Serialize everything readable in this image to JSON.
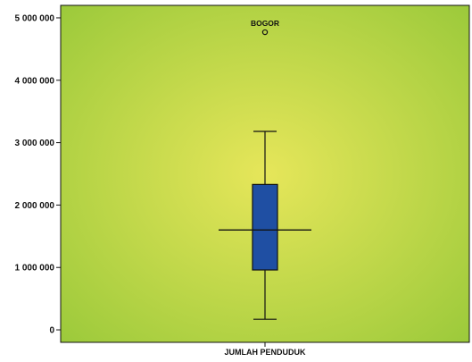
{
  "chart_data": {
    "type": "box",
    "title": "",
    "xlabel": "",
    "ylabel": "",
    "categories": [
      "JUMLAH PENDUDUK"
    ],
    "ylim": [
      -200000,
      5200000
    ],
    "yticks": [
      0,
      1000000,
      2000000,
      3000000,
      4000000,
      5000000
    ],
    "ytick_labels": [
      "0",
      "1 000 000",
      "2 000 000",
      "3 000 000",
      "4 000 000",
      "5 000 000"
    ],
    "grid": false,
    "legend": "none",
    "boxes": [
      {
        "category": "JUMLAH PENDUDUK",
        "whisker_low": 170000,
        "q1": 960000,
        "median": 1600000,
        "q3": 2330000,
        "whisker_high": 3180000,
        "outliers": [
          {
            "label": "BOGOR",
            "value": 4770000
          }
        ]
      }
    ],
    "colors": {
      "box_fill": "#1f4fa3",
      "plot_center": "#e6e65a",
      "plot_edge": "#9ac93a",
      "line": "#111111"
    }
  }
}
